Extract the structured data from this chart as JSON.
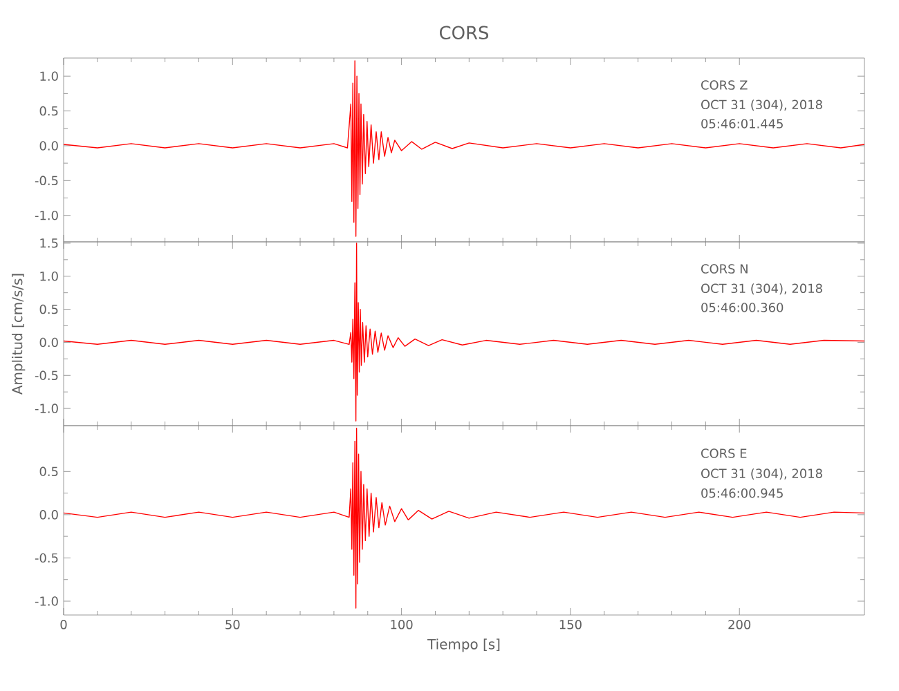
{
  "chart_data": [
    {
      "type": "line",
      "title": "CORS",
      "annotations": [
        "CORS   Z",
        "OCT 31 (304), 2018",
        "05:46:01.445"
      ],
      "xlim": [
        0,
        237
      ],
      "xticks": [
        0,
        50,
        100,
        150,
        200
      ],
      "ylim": [
        -1.38,
        1.26
      ],
      "yticks": [
        {
          "value": 1,
          "label": "1.0"
        },
        0.5,
        {
          "value": 0,
          "label": "0.0"
        },
        -0.5,
        {
          "value": -1,
          "label": "-1.0"
        }
      ],
      "tick_labels": "y",
      "series": [
        {
          "color": "#ff0000",
          "x": [
            0,
            10,
            20,
            30,
            40,
            50,
            60,
            70,
            80,
            84,
            85,
            85.3,
            85.6,
            85.9,
            86.2,
            86.5,
            86.8,
            87.1,
            87.4,
            87.7,
            88,
            88.4,
            88.8,
            89.3,
            89.8,
            90.3,
            91,
            91.7,
            92.5,
            93.3,
            94,
            95,
            96,
            97,
            98,
            100,
            103,
            106,
            110,
            115,
            120,
            130,
            140,
            150,
            160,
            170,
            180,
            190,
            200,
            210,
            220,
            230,
            237
          ],
          "values": [
            0.02,
            -0.03,
            0.03,
            -0.03,
            0.03,
            -0.03,
            0.03,
            -0.03,
            0.03,
            -0.03,
            0.6,
            -0.8,
            0.9,
            -1.1,
            1.22,
            -1.3,
            1.0,
            -0.9,
            0.75,
            -0.7,
            0.6,
            -0.55,
            0.45,
            -0.4,
            0.35,
            -0.3,
            0.3,
            -0.25,
            0.2,
            -0.2,
            0.2,
            -0.15,
            0.12,
            -0.1,
            0.08,
            -0.07,
            0.06,
            -0.05,
            0.05,
            -0.04,
            0.04,
            -0.03,
            0.03,
            -0.03,
            0.03,
            -0.03,
            0.03,
            -0.03,
            0.03,
            -0.03,
            0.03,
            -0.03,
            0.02
          ]
        }
      ]
    },
    {
      "type": "line",
      "ylabel": "Amplitud  [cm/s/s]",
      "annotations": [
        "CORS   N",
        "OCT 31 (304), 2018",
        "05:46:00.360"
      ],
      "xlim": [
        0,
        237
      ],
      "xticks": [
        0,
        50,
        100,
        150,
        200
      ],
      "ylim": [
        -1.26,
        1.52
      ],
      "yticks": [
        1.5,
        {
          "value": 1,
          "label": "1.0"
        },
        0.5,
        {
          "value": 0,
          "label": "0.0"
        },
        -0.5,
        {
          "value": -1,
          "label": "-1.0"
        }
      ],
      "tick_labels": "y",
      "series": [
        {
          "color": "#ff0000",
          "x": [
            0,
            10,
            20,
            30,
            40,
            50,
            60,
            70,
            80,
            84.5,
            85,
            85.3,
            85.6,
            85.9,
            86.2,
            86.5,
            86.7,
            86.9,
            87.2,
            87.5,
            87.8,
            88.1,
            88.5,
            89,
            89.5,
            90,
            90.7,
            91.4,
            92.2,
            93,
            94,
            95,
            96,
            97.5,
            99,
            101,
            104,
            108,
            112,
            118,
            125,
            135,
            145,
            155,
            165,
            175,
            185,
            195,
            205,
            215,
            225,
            237
          ],
          "values": [
            0.02,
            -0.03,
            0.03,
            -0.03,
            0.03,
            -0.03,
            0.03,
            -0.03,
            0.03,
            -0.03,
            0.15,
            -0.3,
            0.35,
            -0.55,
            0.9,
            -1.19,
            1.5,
            -0.8,
            0.6,
            -0.45,
            0.5,
            -0.35,
            0.3,
            -0.3,
            0.25,
            -0.22,
            0.2,
            -0.18,
            0.17,
            -0.15,
            0.14,
            -0.12,
            0.1,
            -0.08,
            0.07,
            -0.06,
            0.05,
            -0.05,
            0.04,
            -0.04,
            0.03,
            -0.03,
            0.03,
            -0.03,
            0.03,
            -0.03,
            0.03,
            -0.03,
            0.03,
            -0.03,
            0.03,
            0.02
          ]
        }
      ]
    },
    {
      "type": "line",
      "xlabel": "Tiempo  [s]",
      "annotations": [
        "CORS   E",
        "OCT 31 (304), 2018",
        "05:46:00.945"
      ],
      "xlim": [
        0,
        237
      ],
      "xticks": [
        0,
        50,
        100,
        150,
        200
      ],
      "ylim": [
        -1.16,
        1.03
      ],
      "yticks": [
        0.5,
        {
          "value": 0,
          "label": "0.0"
        },
        -0.5,
        {
          "value": -1,
          "label": "-1.0"
        }
      ],
      "series": [
        {
          "color": "#ff0000",
          "x": [
            0,
            10,
            20,
            30,
            40,
            50,
            60,
            70,
            80,
            84.5,
            85,
            85.3,
            85.6,
            85.9,
            86.2,
            86.5,
            86.7,
            87,
            87.3,
            87.6,
            88,
            88.4,
            88.8,
            89.3,
            89.8,
            90.4,
            91,
            91.7,
            92.5,
            93.3,
            94.2,
            95.2,
            96.5,
            98,
            100,
            102,
            105,
            109,
            114,
            120,
            128,
            138,
            148,
            158,
            168,
            178,
            188,
            198,
            208,
            218,
            228,
            237
          ],
          "values": [
            0.02,
            -0.03,
            0.03,
            -0.03,
            0.03,
            -0.03,
            0.03,
            -0.03,
            0.03,
            -0.03,
            0.3,
            -0.4,
            0.6,
            -0.7,
            0.85,
            -1.08,
            1.0,
            -0.8,
            0.7,
            -0.55,
            0.5,
            -0.4,
            0.35,
            -0.3,
            0.3,
            -0.25,
            0.25,
            -0.2,
            0.2,
            -0.15,
            0.14,
            -0.12,
            0.1,
            -0.08,
            0.07,
            -0.06,
            0.05,
            -0.05,
            0.04,
            -0.04,
            0.03,
            -0.03,
            0.03,
            -0.03,
            0.03,
            -0.03,
            0.03,
            -0.03,
            0.03,
            -0.03,
            0.03,
            0.02
          ]
        }
      ]
    }
  ]
}
